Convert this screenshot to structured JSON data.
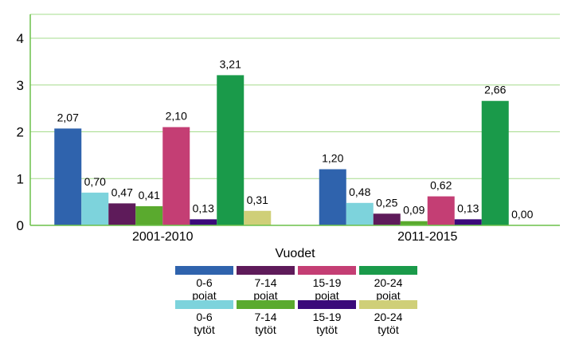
{
  "chart_data": {
    "type": "bar",
    "categories": [
      "2001-2010",
      "2011-2015"
    ],
    "xlabel": "Vuodet",
    "ylabel": "",
    "ylim": [
      0,
      4
    ],
    "yticks": [
      "0",
      "1",
      "2",
      "3",
      "4"
    ],
    "grid": true,
    "legend_position": "bottom",
    "series": [
      {
        "name": "0-6 pojat",
        "color": "#2f63ad",
        "values": [
          2.07,
          1.2
        ],
        "labels": [
          "2,07",
          "1,20"
        ]
      },
      {
        "name": "0-6 tytöt",
        "color": "#7dd3dc",
        "values": [
          0.7,
          0.48
        ],
        "labels": [
          "0,70",
          "0,48"
        ]
      },
      {
        "name": "7-14 pojat",
        "color": "#5e1b5a",
        "values": [
          0.47,
          0.25
        ],
        "labels": [
          "0,47",
          "0,25"
        ]
      },
      {
        "name": "7-14 tytöt",
        "color": "#5aaa2e",
        "values": [
          0.41,
          0.09
        ],
        "labels": [
          "0,41",
          "0,09"
        ]
      },
      {
        "name": "15-19 pojat",
        "color": "#c43e74",
        "values": [
          2.1,
          0.62
        ],
        "labels": [
          "2,10",
          "0,62"
        ]
      },
      {
        "name": "15-19 tytöt",
        "color": "#3a0a7a",
        "values": [
          0.13,
          0.13
        ],
        "labels": [
          "0,13",
          "0,13"
        ]
      },
      {
        "name": "20-24 pojat",
        "color": "#1a9a4a",
        "values": [
          3.21,
          2.66
        ],
        "labels": [
          "3,21",
          "2,66"
        ]
      },
      {
        "name": "20-24 tytöt",
        "color": "#cfcf78",
        "values": [
          0.31,
          0.0
        ],
        "labels": [
          "0,31",
          "0,00"
        ]
      }
    ],
    "legend": [
      {
        "series": 0,
        "line1": "0-6",
        "line2": "pojat"
      },
      {
        "series": 2,
        "line1": "7-14",
        "line2": "pojat"
      },
      {
        "series": 4,
        "line1": "15-19",
        "line2": "pojat"
      },
      {
        "series": 6,
        "line1": "20-24",
        "line2": "pojat"
      },
      {
        "series": 1,
        "line1": "0-6",
        "line2": "tytöt"
      },
      {
        "series": 3,
        "line1": "7-14",
        "line2": "tytöt"
      },
      {
        "series": 5,
        "line1": "15-19",
        "line2": "tytöt"
      },
      {
        "series": 7,
        "line1": "20-24",
        "line2": "tytöt"
      }
    ]
  }
}
